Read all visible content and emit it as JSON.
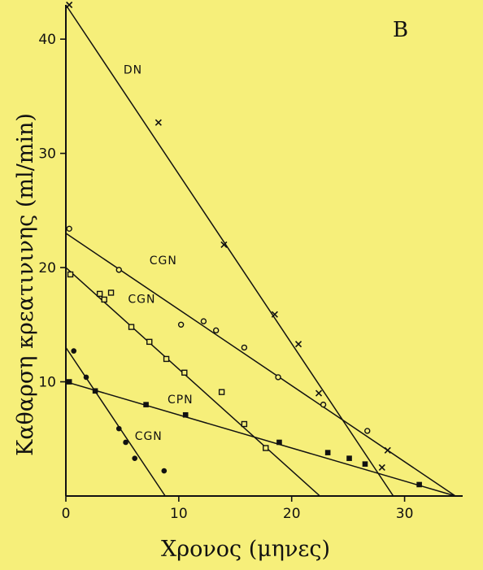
{
  "chart_data": {
    "type": "scatter",
    "panel_label": "B",
    "xlabel": "Χρονος (μηνες)",
    "ylabel": "Καθαρση κρεατινινης (ml/min)",
    "xlim": [
      0,
      35
    ],
    "ylim": [
      0,
      43
    ],
    "x_ticks": [
      "0",
      "10",
      "20",
      "30"
    ],
    "y_ticks": [
      "10",
      "20",
      "30",
      "40"
    ],
    "grid": false,
    "legend": "none",
    "series": [
      {
        "name": "DN",
        "marker": "x",
        "points": [
          [
            0.3,
            43
          ],
          [
            8.2,
            32.7
          ],
          [
            14,
            22
          ],
          [
            18.5,
            15.9
          ],
          [
            20.6,
            13.3
          ],
          [
            22.4,
            9
          ],
          [
            28.5,
            4
          ],
          [
            28,
            2.5
          ]
        ],
        "fit": [
          [
            0,
            43
          ],
          [
            29,
            0
          ]
        ]
      },
      {
        "name": "CGN",
        "marker": "open-circle",
        "points": [
          [
            0.3,
            23.4
          ],
          [
            4.7,
            19.8
          ],
          [
            10.2,
            15
          ],
          [
            12.2,
            15.3
          ],
          [
            13.3,
            14.5
          ],
          [
            15.8,
            13
          ],
          [
            18.8,
            10.4
          ],
          [
            22.8,
            8
          ],
          [
            26.7,
            5.7
          ]
        ],
        "fit": [
          [
            0,
            23
          ],
          [
            34.5,
            0
          ]
        ]
      },
      {
        "name": "CGN",
        "marker": "open-square",
        "points": [
          [
            0.4,
            19.4
          ],
          [
            3,
            17.7
          ],
          [
            3.4,
            17.2
          ],
          [
            4,
            17.8
          ],
          [
            5.8,
            14.8
          ],
          [
            7.4,
            13.5
          ],
          [
            8.9,
            12
          ],
          [
            10.5,
            10.8
          ],
          [
            13.8,
            9.1
          ],
          [
            15.8,
            6.3
          ],
          [
            17.7,
            4.2
          ]
        ],
        "fit": [
          [
            0,
            20
          ],
          [
            22.5,
            0
          ]
        ]
      },
      {
        "name": "CPN",
        "marker": "filled-square",
        "points": [
          [
            0.3,
            10
          ],
          [
            2.6,
            9.2
          ],
          [
            7.1,
            8
          ],
          [
            10.6,
            7.1
          ],
          [
            18.9,
            4.7
          ],
          [
            23.2,
            3.8
          ],
          [
            25.1,
            3.3
          ],
          [
            26.5,
            2.8
          ],
          [
            31.3,
            1
          ]
        ],
        "fit": [
          [
            0,
            10
          ],
          [
            34.5,
            0
          ]
        ]
      },
      {
        "name": "CGN",
        "marker": "filled-circle",
        "points": [
          [
            0.7,
            12.7
          ],
          [
            1.8,
            10.4
          ],
          [
            4.7,
            5.9
          ],
          [
            5.3,
            4.7
          ],
          [
            6.1,
            3.3
          ],
          [
            8.7,
            2.2
          ]
        ],
        "fit": [
          [
            0,
            13
          ],
          [
            8.8,
            0
          ]
        ]
      }
    ],
    "series_labels": [
      {
        "text": "DN",
        "x": 5.1,
        "y": 37
      },
      {
        "text": "CGN",
        "x": 7.4,
        "y": 20.3
      },
      {
        "text": "CGN",
        "x": 5.5,
        "y": 16.9
      },
      {
        "text": "CPN",
        "x": 9,
        "y": 8.1
      },
      {
        "text": "CGN",
        "x": 6.1,
        "y": 4.9
      }
    ]
  }
}
